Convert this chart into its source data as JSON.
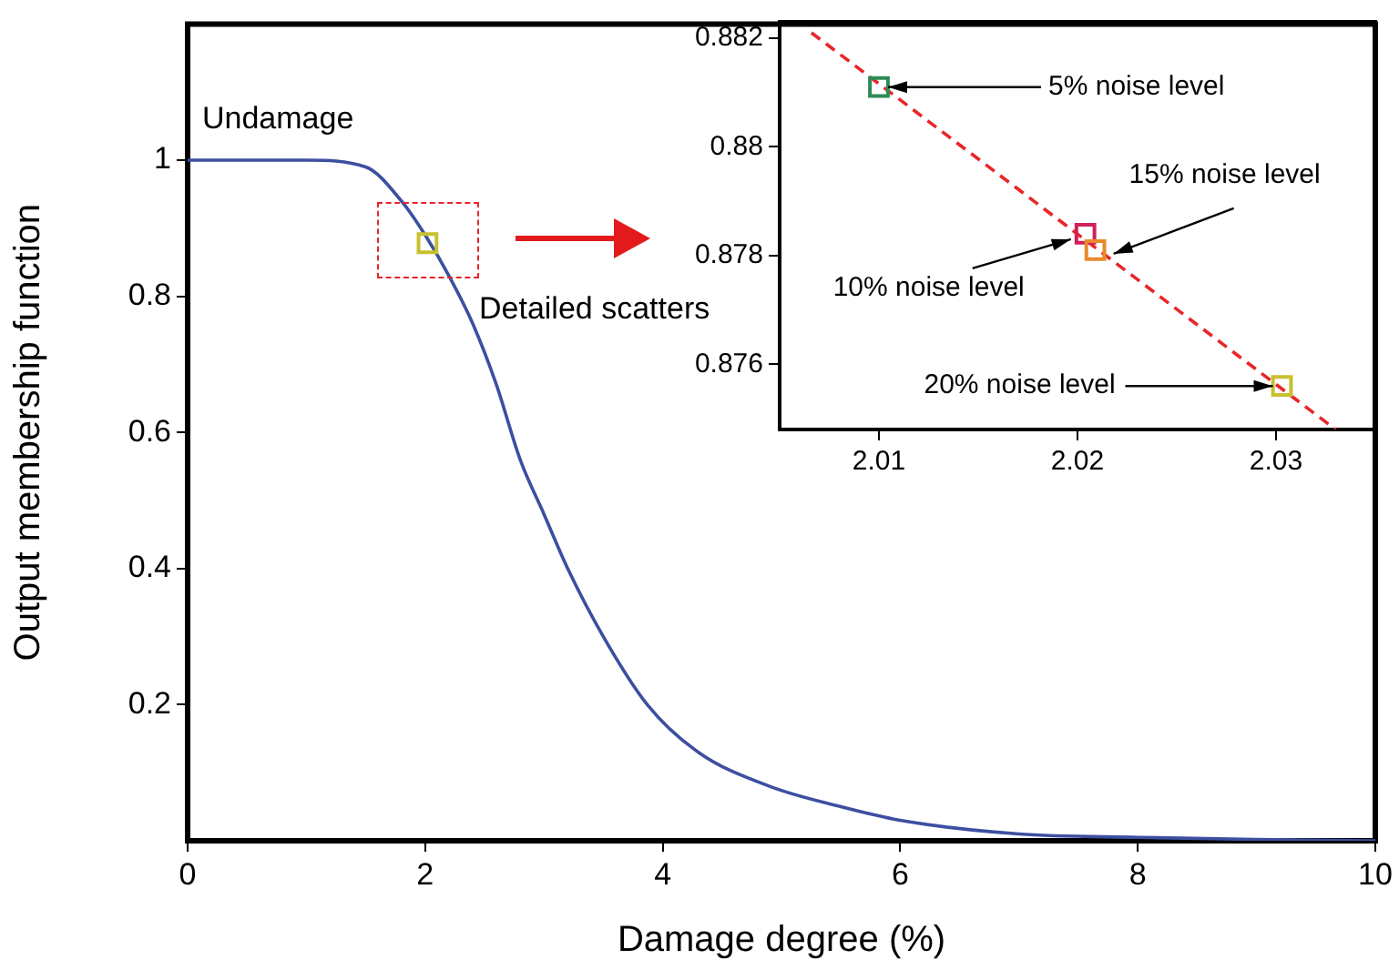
{
  "chart_data": [
    {
      "type": "line",
      "xlabel": "Damage degree (%)",
      "ylabel": "Output membership function",
      "xlim": [
        0,
        10
      ],
      "ylim": [
        0,
        1.2
      ],
      "xticks": [
        0,
        2,
        4,
        6,
        8,
        10
      ],
      "yticks": [
        0.2,
        0.4,
        0.6,
        0.8,
        1
      ],
      "grid": false,
      "annotations": [
        "Undamage",
        "Detailed scatters"
      ],
      "series": [
        {
          "color": "#3c4fa0",
          "x": [
            0,
            0.5,
            1,
            1.5,
            1.8,
            2,
            2.2,
            2.4,
            2.6,
            2.8,
            3,
            3.2,
            3.5,
            3.87,
            4.3,
            4.9,
            5.5,
            6,
            7,
            8,
            9,
            10
          ],
          "values": [
            1,
            1,
            1,
            0.99,
            0.94,
            0.89,
            0.83,
            0.76,
            0.67,
            0.56,
            0.48,
            0.4,
            0.3,
            0.2,
            0.13,
            0.08,
            0.05,
            0.03,
            0.01,
            0.005,
            0.002,
            0
          ]
        },
        {
          "type": "scatter",
          "marker": "square",
          "color": "#c8c030",
          "x": [
            2.02
          ],
          "values": [
            0.878
          ]
        }
      ]
    },
    {
      "type": "scatter",
      "xlim": [
        2.005,
        2.035
      ],
      "ylim": [
        0.8748,
        0.8823
      ],
      "xticks": [
        2.01,
        2.02,
        2.03
      ],
      "yticks": [
        0.876,
        0.878,
        0.88,
        0.882
      ],
      "grid": false,
      "annotations": [
        {
          "text": "5% noise level",
          "x": 2.01,
          "y": 0.8811
        },
        {
          "text": "10% noise level",
          "x": 2.0204,
          "y": 0.8784
        },
        {
          "text": "15% noise level",
          "x": 2.0209,
          "y": 0.8781
        },
        {
          "text": "20% noise level",
          "x": 2.0303,
          "y": 0.8756
        }
      ],
      "series": [
        {
          "type": "line",
          "line_style": "dashed",
          "color": "#e8262a",
          "x": [
            2.0066,
            2.033
          ],
          "values": [
            0.8821,
            0.8748
          ]
        },
        {
          "marker": "square",
          "colors": [
            "#2e8b57",
            "#d0205a",
            "#e88a2a",
            "#c8c030"
          ],
          "x": [
            2.01,
            2.0204,
            2.0209,
            2.0303
          ],
          "values": [
            0.8811,
            0.8784,
            0.8781,
            0.8756
          ]
        }
      ]
    }
  ]
}
